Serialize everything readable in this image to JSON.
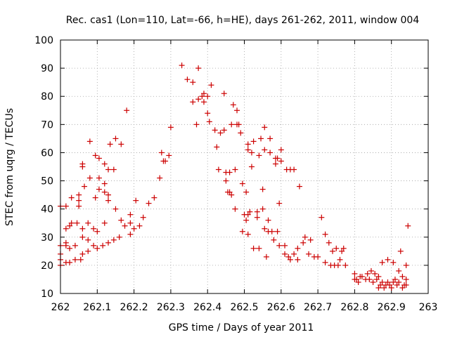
{
  "chart_data": {
    "type": "scatter",
    "title": "Rec. cas1 (Lon=110, Lat=-66, h=HE), days 261-262, 2011, window 004",
    "xlabel": "GPS time / Days of year 2011",
    "ylabel": "STEC from uqrg / TECUs",
    "xlim": [
      262,
      263
    ],
    "ylim": [
      10,
      100
    ],
    "xticks": [
      262,
      262.1,
      262.2,
      262.3,
      262.4,
      262.5,
      262.6,
      262.7,
      262.8,
      262.9,
      263
    ],
    "xtick_labels": [
      "262",
      "262.1",
      "262.2",
      "262.3",
      "262.4",
      "262.5",
      "262.6",
      "262.7",
      "262.8",
      "262.9",
      "263"
    ],
    "yticks": [
      10,
      20,
      30,
      40,
      50,
      60,
      70,
      80,
      90,
      100
    ],
    "ytick_labels": [
      "10",
      "20",
      "30",
      "40",
      "50",
      "60",
      "70",
      "80",
      "90",
      "100"
    ],
    "grid": true,
    "marker": "plus",
    "marker_color": "#cc0000",
    "points": [
      [
        262.0,
        20
      ],
      [
        262.0,
        22
      ],
      [
        262.0,
        24
      ],
      [
        262.0,
        27
      ],
      [
        262.0,
        41
      ],
      [
        262.015,
        21
      ],
      [
        262.015,
        27
      ],
      [
        262.015,
        28
      ],
      [
        262.015,
        33
      ],
      [
        262.015,
        41
      ],
      [
        262.025,
        21
      ],
      [
        262.025,
        26
      ],
      [
        262.025,
        34
      ],
      [
        262.03,
        35
      ],
      [
        262.03,
        44
      ],
      [
        262.04,
        22
      ],
      [
        262.04,
        27
      ],
      [
        262.045,
        35
      ],
      [
        262.05,
        41
      ],
      [
        262.05,
        43
      ],
      [
        262.05,
        45
      ],
      [
        262.055,
        22
      ],
      [
        262.06,
        24
      ],
      [
        262.06,
        30
      ],
      [
        262.06,
        33
      ],
      [
        262.06,
        55
      ],
      [
        262.06,
        56
      ],
      [
        262.065,
        48
      ],
      [
        262.075,
        25
      ],
      [
        262.075,
        29
      ],
      [
        262.075,
        35
      ],
      [
        262.08,
        51
      ],
      [
        262.08,
        64
      ],
      [
        262.09,
        27
      ],
      [
        262.09,
        33
      ],
      [
        262.095,
        44
      ],
      [
        262.095,
        59
      ],
      [
        262.1,
        26
      ],
      [
        262.1,
        32
      ],
      [
        262.105,
        47
      ],
      [
        262.105,
        51
      ],
      [
        262.105,
        58
      ],
      [
        262.115,
        27
      ],
      [
        262.12,
        35
      ],
      [
        262.12,
        46
      ],
      [
        262.12,
        49
      ],
      [
        262.12,
        56
      ],
      [
        262.13,
        28
      ],
      [
        262.13,
        43
      ],
      [
        262.13,
        45
      ],
      [
        262.13,
        54
      ],
      [
        262.135,
        63
      ],
      [
        262.145,
        29
      ],
      [
        262.145,
        54
      ],
      [
        262.15,
        40
      ],
      [
        262.15,
        65
      ],
      [
        262.16,
        30
      ],
      [
        262.165,
        36
      ],
      [
        262.165,
        63
      ],
      [
        262.175,
        34
      ],
      [
        262.18,
        75
      ],
      [
        262.19,
        31
      ],
      [
        262.19,
        35
      ],
      [
        262.19,
        38
      ],
      [
        262.2,
        33
      ],
      [
        262.205,
        43
      ],
      [
        262.215,
        34
      ],
      [
        262.225,
        37
      ],
      [
        262.24,
        42
      ],
      [
        262.255,
        44
      ],
      [
        262.27,
        51
      ],
      [
        262.275,
        60
      ],
      [
        262.28,
        57
      ],
      [
        262.285,
        57
      ],
      [
        262.295,
        59
      ],
      [
        262.3,
        69
      ],
      [
        262.33,
        91
      ],
      [
        262.345,
        86
      ],
      [
        262.36,
        78
      ],
      [
        262.36,
        85
      ],
      [
        262.37,
        70
      ],
      [
        262.375,
        79
      ],
      [
        262.375,
        90
      ],
      [
        262.385,
        80
      ],
      [
        262.39,
        78
      ],
      [
        262.39,
        81
      ],
      [
        262.4,
        80
      ],
      [
        262.4,
        74
      ],
      [
        262.405,
        71
      ],
      [
        262.41,
        84
      ],
      [
        262.42,
        68
      ],
      [
        262.425,
        62
      ],
      [
        262.43,
        54
      ],
      [
        262.435,
        67
      ],
      [
        262.445,
        68
      ],
      [
        262.445,
        81
      ],
      [
        262.45,
        50
      ],
      [
        262.45,
        53
      ],
      [
        262.455,
        46
      ],
      [
        262.46,
        46
      ],
      [
        262.46,
        53
      ],
      [
        262.465,
        45
      ],
      [
        262.465,
        70
      ],
      [
        262.47,
        77
      ],
      [
        262.475,
        40
      ],
      [
        262.475,
        54
      ],
      [
        262.48,
        70
      ],
      [
        262.48,
        75
      ],
      [
        262.485,
        70
      ],
      [
        262.49,
        67
      ],
      [
        262.495,
        32
      ],
      [
        262.495,
        49
      ],
      [
        262.5,
        38
      ],
      [
        262.505,
        36
      ],
      [
        262.505,
        46
      ],
      [
        262.51,
        31
      ],
      [
        262.51,
        38
      ],
      [
        262.51,
        61
      ],
      [
        262.51,
        63
      ],
      [
        262.515,
        39
      ],
      [
        262.52,
        55
      ],
      [
        262.52,
        60
      ],
      [
        262.525,
        64
      ],
      [
        262.525,
        26
      ],
      [
        262.535,
        37
      ],
      [
        262.535,
        39
      ],
      [
        262.54,
        26
      ],
      [
        262.54,
        59
      ],
      [
        262.545,
        65
      ],
      [
        262.55,
        40
      ],
      [
        262.55,
        47
      ],
      [
        262.555,
        33
      ],
      [
        262.555,
        61
      ],
      [
        262.555,
        69
      ],
      [
        262.56,
        23
      ],
      [
        262.565,
        32
      ],
      [
        262.565,
        36
      ],
      [
        262.57,
        60
      ],
      [
        262.57,
        65
      ],
      [
        262.575,
        32
      ],
      [
        262.58,
        29
      ],
      [
        262.585,
        56
      ],
      [
        262.585,
        58
      ],
      [
        262.59,
        58
      ],
      [
        262.59,
        32
      ],
      [
        262.595,
        27
      ],
      [
        262.595,
        42
      ],
      [
        262.6,
        57
      ],
      [
        262.6,
        61
      ],
      [
        262.61,
        24
      ],
      [
        262.61,
        27
      ],
      [
        262.615,
        54
      ],
      [
        262.62,
        23
      ],
      [
        262.625,
        22
      ],
      [
        262.625,
        54
      ],
      [
        262.635,
        24
      ],
      [
        262.635,
        54
      ],
      [
        262.645,
        22
      ],
      [
        262.645,
        26
      ],
      [
        262.65,
        48
      ],
      [
        262.66,
        28
      ],
      [
        262.665,
        30
      ],
      [
        262.675,
        24
      ],
      [
        262.68,
        29
      ],
      [
        262.69,
        23
      ],
      [
        262.7,
        23
      ],
      [
        262.71,
        37
      ],
      [
        262.72,
        21
      ],
      [
        262.72,
        31
      ],
      [
        262.73,
        28
      ],
      [
        262.735,
        20
      ],
      [
        262.74,
        25
      ],
      [
        262.745,
        20
      ],
      [
        262.75,
        26
      ],
      [
        262.755,
        20
      ],
      [
        262.76,
        22
      ],
      [
        262.765,
        25
      ],
      [
        262.77,
        26
      ],
      [
        262.775,
        20
      ],
      [
        262.8,
        15
      ],
      [
        262.8,
        17
      ],
      [
        262.805,
        15
      ],
      [
        262.81,
        14
      ],
      [
        262.815,
        16
      ],
      [
        262.82,
        16
      ],
      [
        262.83,
        15
      ],
      [
        262.835,
        17
      ],
      [
        262.84,
        15
      ],
      [
        262.845,
        18
      ],
      [
        262.85,
        14
      ],
      [
        262.855,
        17
      ],
      [
        262.86,
        15
      ],
      [
        262.865,
        12
      ],
      [
        262.865,
        16
      ],
      [
        262.87,
        13
      ],
      [
        262.875,
        14
      ],
      [
        262.875,
        21
      ],
      [
        262.88,
        12
      ],
      [
        262.885,
        13
      ],
      [
        262.89,
        14
      ],
      [
        262.89,
        22
      ],
      [
        262.895,
        13
      ],
      [
        262.9,
        12
      ],
      [
        262.905,
        14
      ],
      [
        262.905,
        21
      ],
      [
        262.91,
        15
      ],
      [
        262.915,
        13
      ],
      [
        262.92,
        14
      ],
      [
        262.92,
        18
      ],
      [
        262.925,
        25
      ],
      [
        262.93,
        12
      ],
      [
        262.93,
        16
      ],
      [
        262.935,
        13
      ],
      [
        262.94,
        13
      ],
      [
        262.94,
        15
      ],
      [
        262.94,
        20
      ],
      [
        262.945,
        34
      ]
    ]
  }
}
